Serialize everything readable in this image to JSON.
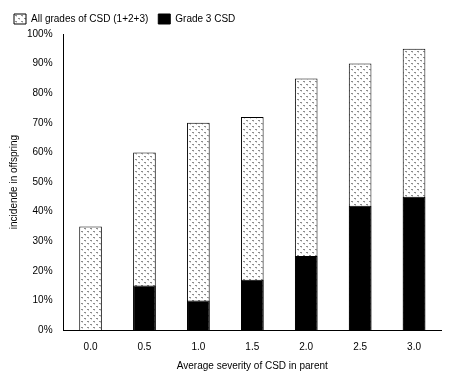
{
  "chart_data": {
    "type": "bar",
    "x_label": "Average severity of CSD in parent",
    "y_label": "incidende in offspring",
    "categories": [
      "0.0",
      "0.5",
      "1.0",
      "1.5",
      "2.0",
      "2.5",
      "3.0"
    ],
    "series": [
      {
        "name": "All grades of CSD (1+2+3)",
        "color": "#8c8c8c",
        "values": [
          35,
          60,
          70,
          72,
          85,
          90,
          95
        ]
      },
      {
        "name": "Grade 3 CSD",
        "color": "#000000",
        "values": [
          0,
          15,
          10,
          17,
          25,
          42,
          45
        ]
      }
    ],
    "ylim": [
      0,
      100
    ],
    "yticks": [
      {
        "value": 0,
        "label": "0%"
      },
      {
        "value": 10,
        "label": "10%"
      },
      {
        "value": 20,
        "label": "20%"
      },
      {
        "value": 30,
        "label": "30%"
      },
      {
        "value": 40,
        "label": "40%"
      },
      {
        "value": 50,
        "label": "50%"
      },
      {
        "value": 60,
        "label": "60%"
      },
      {
        "value": 70,
        "label": "70%"
      },
      {
        "value": 80,
        "label": "80%"
      },
      {
        "value": 90,
        "label": "90%"
      },
      {
        "value": 100,
        "label": "100%"
      }
    ],
    "grid": false,
    "legend": "upper left"
  }
}
